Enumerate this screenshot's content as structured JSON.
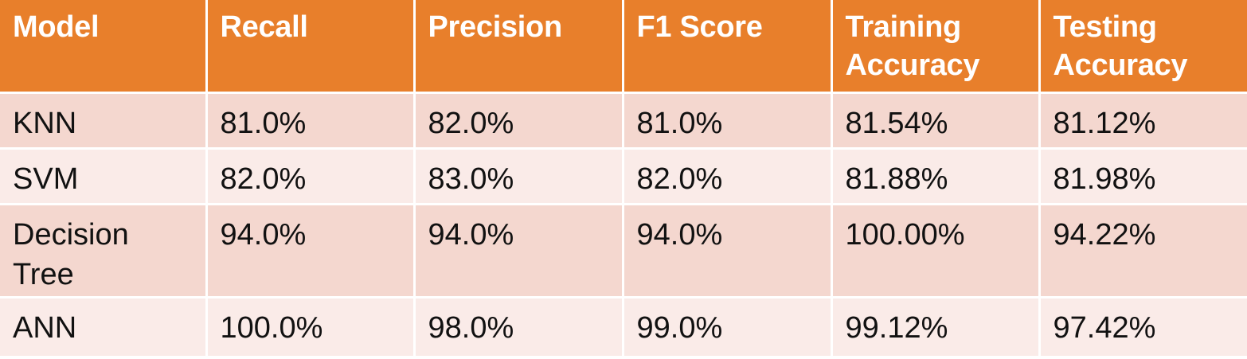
{
  "table": {
    "headers": [
      "Model",
      "Recall",
      "Precision",
      "F1 Score",
      "Training Accuracy",
      "Testing Accuracy"
    ],
    "rows": [
      [
        "KNN",
        "81.0%",
        "82.0%",
        "81.0%",
        "81.54%",
        "81.12%"
      ],
      [
        "SVM",
        "82.0%",
        "83.0%",
        "82.0%",
        "81.88%",
        "81.98%"
      ],
      [
        "Decision Tree",
        "94.0%",
        "94.0%",
        "94.0%",
        "100.00%",
        "94.22%"
      ],
      [
        "ANN",
        "100.0%",
        "98.0%",
        "99.0%",
        "99.12%",
        "97.42%"
      ]
    ]
  },
  "colors": {
    "header_bg": "#e87f2b",
    "header_text": "#ffffff",
    "row_odd_bg": "#f4d7cf",
    "row_even_bg": "#faebe8"
  }
}
